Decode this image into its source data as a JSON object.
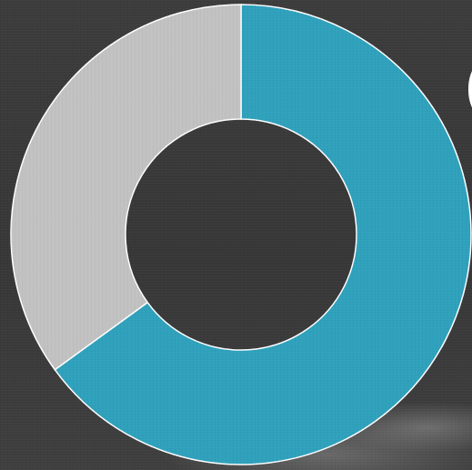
{
  "chart_data": {
    "type": "pie",
    "donut": true,
    "categories": [
      "",
      ""
    ],
    "values": [
      65,
      35
    ],
    "colors": [
      "#2fa1bc",
      "#c2c2c2"
    ],
    "title": ""
  },
  "background": {
    "color": "#3a3a3a"
  },
  "cropped_text": {
    "partial_glyph": "("
  }
}
